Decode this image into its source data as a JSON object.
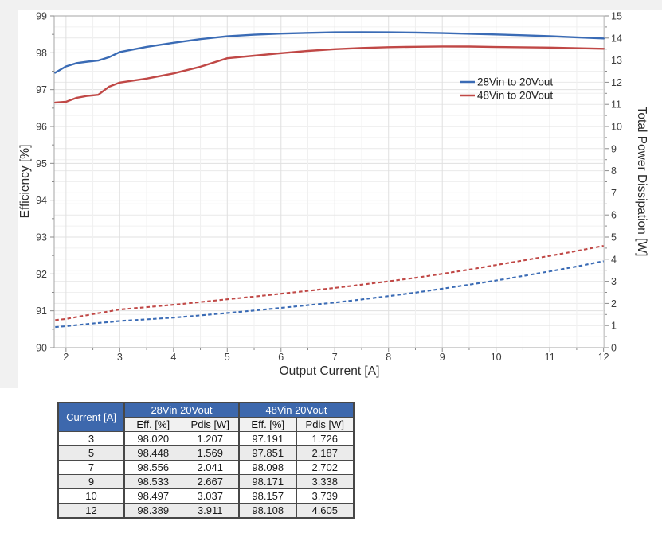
{
  "chart_data": {
    "type": "line",
    "title": "",
    "xlabel": "Output Current [A]",
    "ylabel_left": "Efficiency [%]",
    "ylabel_right": "Total Power Dissipation [W]",
    "xlim": [
      1.78,
      12.02
    ],
    "ylim_left": [
      90,
      99
    ],
    "ylim_right": [
      0,
      15
    ],
    "x_major_ticks": [
      2,
      3,
      4,
      5,
      6,
      7,
      8,
      9,
      10,
      11,
      12
    ],
    "y_left_major_ticks": [
      90,
      91,
      92,
      93,
      94,
      95,
      96,
      97,
      98,
      99
    ],
    "y_right_major_ticks": [
      0,
      1,
      2,
      3,
      4,
      5,
      6,
      7,
      8,
      9,
      10,
      11,
      12,
      13,
      14,
      15
    ],
    "grid": true,
    "legend_position": "inside upper right",
    "legend": [
      {
        "label": "28Vin to 20Vout",
        "color": "#3a6bb5"
      },
      {
        "label": "48Vin to 20Vout",
        "color": "#c04846"
      }
    ],
    "x": [
      1.8,
      2.0,
      2.2,
      2.4,
      2.6,
      2.8,
      3.0,
      3.5,
      4.0,
      4.5,
      5.0,
      5.5,
      6.0,
      6.5,
      7.0,
      7.5,
      8.0,
      8.5,
      9.0,
      9.5,
      10.0,
      10.5,
      11.0,
      11.5,
      12.0
    ],
    "series": [
      {
        "name": "28Vin to 20Vout Efficiency [%]",
        "axis": "left",
        "style": "solid",
        "color": "#3a6bb5",
        "values": [
          97.46,
          97.63,
          97.72,
          97.76,
          97.79,
          97.88,
          98.02,
          98.16,
          98.27,
          98.37,
          98.448,
          98.49,
          98.52,
          98.54,
          98.556,
          98.558,
          98.555,
          98.548,
          98.533,
          98.516,
          98.497,
          98.475,
          98.452,
          98.42,
          98.389
        ]
      },
      {
        "name": "48Vin to 20Vout Efficiency [%]",
        "axis": "left",
        "style": "solid",
        "color": "#c04846",
        "values": [
          96.65,
          96.67,
          96.78,
          96.83,
          96.86,
          97.08,
          97.191,
          97.3,
          97.44,
          97.62,
          97.851,
          97.92,
          97.99,
          98.05,
          98.098,
          98.13,
          98.151,
          98.163,
          98.171,
          98.168,
          98.157,
          98.15,
          98.14,
          98.124,
          98.108
        ]
      },
      {
        "name": "28Vin to 20Vout Total Power Dissipation [W]",
        "axis": "right",
        "style": "dashed",
        "color": "#3a6bb5",
        "values": [
          0.93,
          0.97,
          1.02,
          1.07,
          1.12,
          1.16,
          1.207,
          1.28,
          1.36,
          1.46,
          1.569,
          1.68,
          1.8,
          1.92,
          2.041,
          2.18,
          2.33,
          2.49,
          2.667,
          2.85,
          3.037,
          3.24,
          3.45,
          3.67,
          3.911
        ]
      },
      {
        "name": "48Vin to 20Vout Total Power Dissipation [W]",
        "axis": "right",
        "style": "dashed",
        "color": "#c04846",
        "values": [
          1.25,
          1.3,
          1.39,
          1.47,
          1.56,
          1.64,
          1.726,
          1.83,
          1.94,
          2.06,
          2.187,
          2.31,
          2.44,
          2.57,
          2.702,
          2.85,
          3.0,
          3.16,
          3.338,
          3.53,
          3.739,
          3.94,
          4.15,
          4.37,
          4.605
        ]
      }
    ]
  },
  "table": {
    "col0_header": {
      "label": "Current",
      "unit": " [A]"
    },
    "groups": [
      "28Vin 20Vout",
      "48Vin 20Vout"
    ],
    "subheaders": [
      "Eff. [%]",
      "Pdis [W]",
      "Eff. [%]",
      "Pdis [W]"
    ],
    "rows": [
      {
        "current": "3",
        "cells": [
          "98.020",
          "1.207",
          "97.191",
          "1.726"
        ]
      },
      {
        "current": "5",
        "cells": [
          "98.448",
          "1.569",
          "97.851",
          "2.187"
        ]
      },
      {
        "current": "7",
        "cells": [
          "98.556",
          "2.041",
          "98.098",
          "2.702"
        ]
      },
      {
        "current": "9",
        "cells": [
          "98.533",
          "2.667",
          "98.171",
          "3.338"
        ]
      },
      {
        "current": "10",
        "cells": [
          "98.497",
          "3.037",
          "98.157",
          "3.739"
        ]
      },
      {
        "current": "12",
        "cells": [
          "98.389",
          "3.911",
          "98.108",
          "4.605"
        ]
      }
    ]
  },
  "colors": {
    "series_blue": "#3a6bb5",
    "series_red": "#c04846",
    "table_header_blue": "#3d68ad",
    "grid_major": "#e0e0e0",
    "grid_minor": "#f0f0f0",
    "frame": "#a6a6a6",
    "tick": "#8a8a8a",
    "tick_label": "#3d3d3d",
    "axis_title": "#2b2b2b"
  }
}
